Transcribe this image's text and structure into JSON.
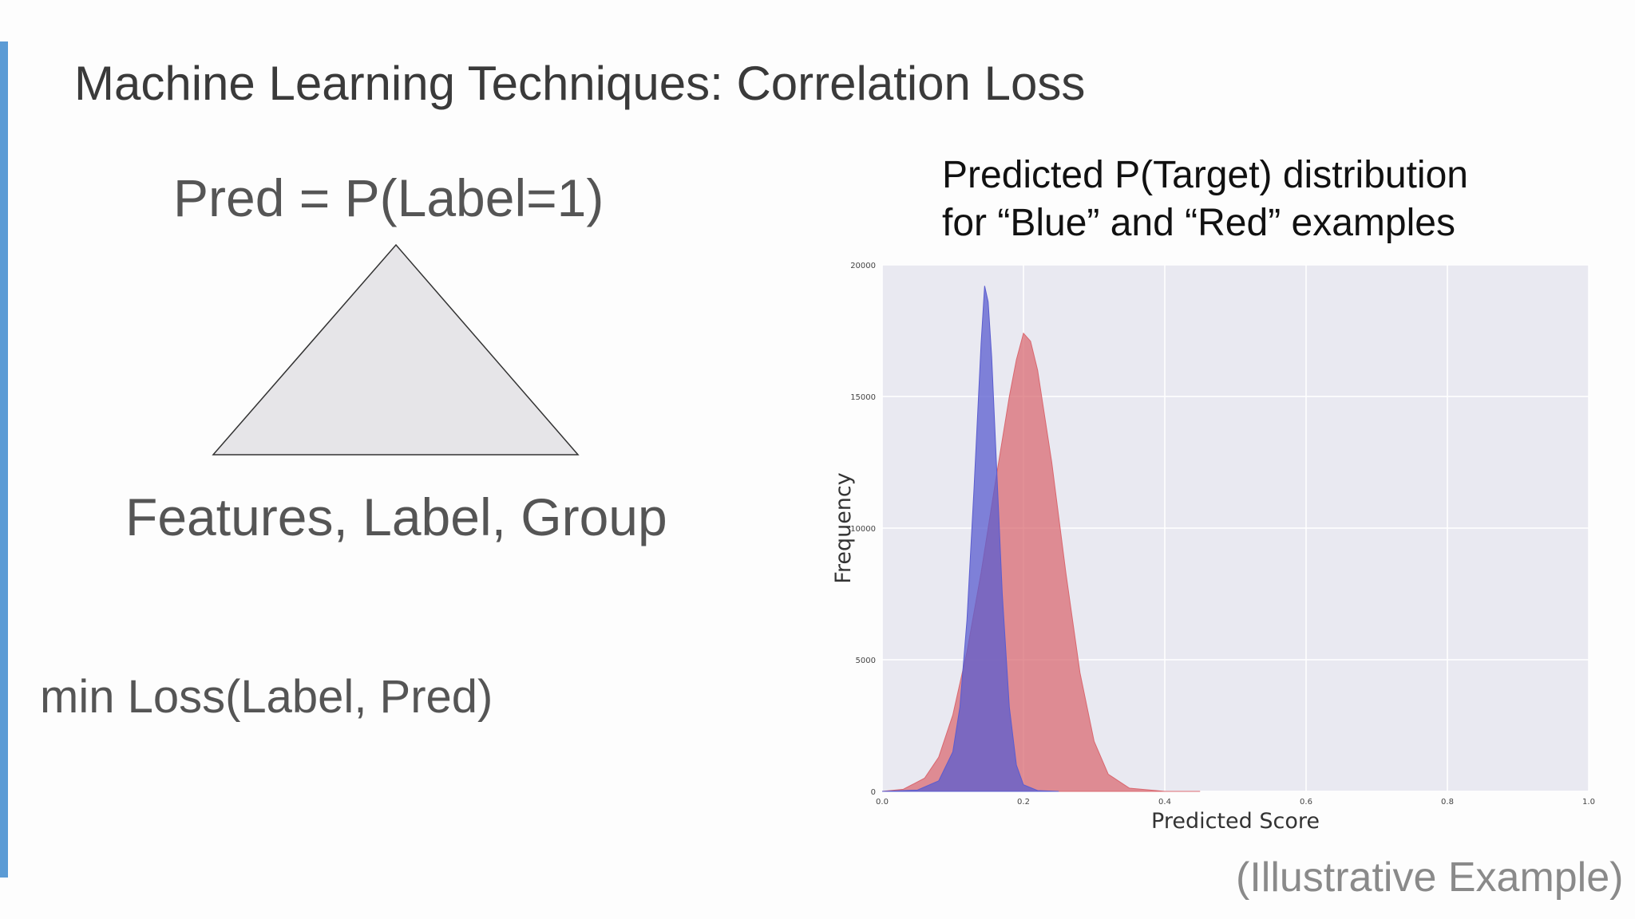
{
  "slide": {
    "title": "Machine Learning Techniques:  Correlation Loss",
    "pred_formula": "Pred = P(Label=1)",
    "features_text": "Features, Label, Group",
    "min_loss": "min Loss(Label, Pred)",
    "illustrative": "(Illustrative Example)",
    "colors": {
      "accent": "#5b9bd5",
      "triangle_fill": "#e6e5e8",
      "triangle_stroke": "#333333"
    }
  },
  "chart_title": {
    "line1": "Predicted P(Target) distribution",
    "line2": "for “Blue” and “Red” examples"
  },
  "chart_data": {
    "type": "area",
    "xlabel": "Predicted Score",
    "ylabel": "Frequency",
    "xlim": [
      0.0,
      1.0
    ],
    "ylim": [
      0,
      20000
    ],
    "xticks": [
      "0.0",
      "0.2",
      "0.4",
      "0.6",
      "0.8",
      "1.0"
    ],
    "yticks": [
      "0",
      "5000",
      "10000",
      "15000",
      "20000"
    ],
    "grid": true,
    "background": "#e9e9f1",
    "series": [
      {
        "color": "#d9676f",
        "x": [
          0.0,
          0.03,
          0.06,
          0.08,
          0.1,
          0.12,
          0.14,
          0.16,
          0.18,
          0.19,
          0.2,
          0.21,
          0.22,
          0.24,
          0.26,
          0.28,
          0.3,
          0.32,
          0.35,
          0.4,
          0.45
        ],
        "values": [
          0,
          80,
          500,
          1300,
          2900,
          5300,
          8300,
          11700,
          15000,
          16400,
          17400,
          17100,
          16000,
          12500,
          8300,
          4500,
          1900,
          650,
          120,
          0,
          0
        ]
      },
      {
        "color": "#5a5ccf",
        "x": [
          0.0,
          0.05,
          0.08,
          0.1,
          0.11,
          0.12,
          0.13,
          0.14,
          0.145,
          0.15,
          0.155,
          0.16,
          0.17,
          0.18,
          0.19,
          0.2,
          0.22,
          0.25
        ],
        "values": [
          0,
          50,
          400,
          1500,
          3200,
          6500,
          11500,
          17000,
          19200,
          18600,
          16500,
          13500,
          7500,
          3200,
          1000,
          250,
          30,
          0
        ]
      }
    ]
  }
}
